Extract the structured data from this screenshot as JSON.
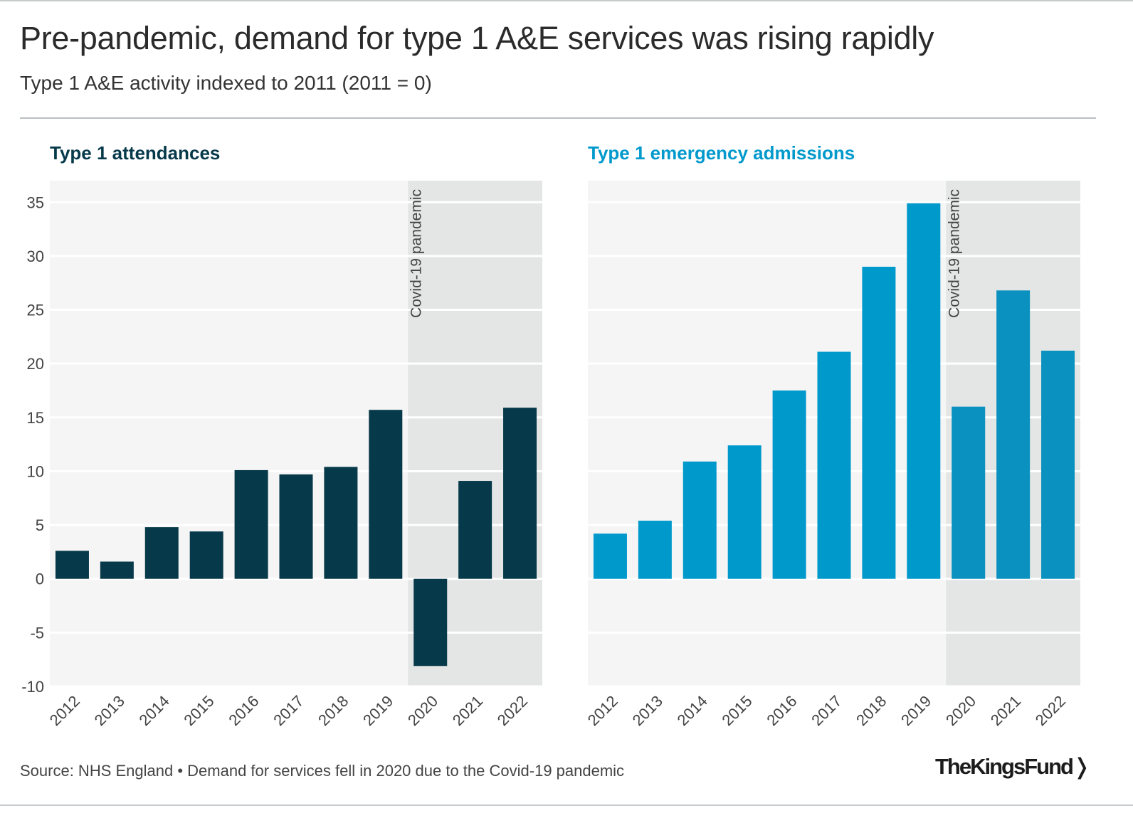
{
  "title": "Pre-pandemic, demand for type 1 A&E services was rising rapidly",
  "subtitle": "Type 1 A&E activity indexed to 2011 (2011 = 0)",
  "footer": {
    "source": "Source: NHS England • Demand for services fell in 2020 due to the Covid-19 pandemic",
    "logo": "The King's Fund"
  },
  "colors": {
    "attendances": "#06394a",
    "admissions": "#0099cc",
    "admissions_pandemic": "#0a91c0",
    "plot_bg": "#f5f5f5",
    "pandemic_bg": "#e4e5e5"
  },
  "chart_data": [
    {
      "type": "bar",
      "title": "Type 1 attendances",
      "categories": [
        "2012",
        "2013",
        "2014",
        "2015",
        "2016",
        "2017",
        "2018",
        "2019",
        "2020",
        "2021",
        "2022"
      ],
      "values": [
        2.6,
        1.6,
        4.8,
        4.4,
        10.1,
        9.7,
        10.4,
        15.7,
        -8.1,
        9.1,
        15.9
      ],
      "ylim": [
        -10,
        37
      ],
      "yticks": [
        "-10",
        "-5",
        "0",
        "5",
        "10",
        "15",
        "20",
        "25",
        "30",
        "35"
      ],
      "grid": true,
      "annotation": {
        "label": "Covid-19 pandemic",
        "from": "2020",
        "to": "2022"
      }
    },
    {
      "type": "bar",
      "title": "Type 1 emergency admissions",
      "categories": [
        "2012",
        "2013",
        "2014",
        "2015",
        "2016",
        "2017",
        "2018",
        "2019",
        "2020",
        "2021",
        "2022"
      ],
      "values": [
        4.2,
        5.4,
        10.9,
        12.4,
        17.5,
        21.1,
        29.0,
        34.9,
        16.0,
        26.8,
        21.2
      ],
      "ylim": [
        -10,
        37
      ],
      "grid": true,
      "annotation": {
        "label": "Covid-19 pandemic",
        "from": "2020",
        "to": "2022"
      }
    }
  ]
}
